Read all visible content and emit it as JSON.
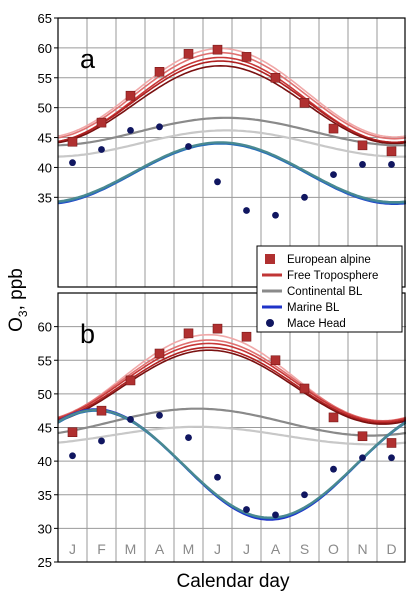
{
  "figure": {
    "ylabel_main": "O",
    "ylabel_sub": "3",
    "ylabel_rest": ", ppb",
    "xlabel": "Calendar day"
  },
  "legend": [
    {
      "label": "European alpine",
      "marker": "square",
      "color": "#b03030"
    },
    {
      "label": "Free Troposphere",
      "marker": "line",
      "color": "#c03535"
    },
    {
      "label": "Continental BL",
      "marker": "line",
      "color": "#8a8a8a"
    },
    {
      "label": "Marine BL",
      "marker": "line",
      "color": "#1f33c8"
    },
    {
      "label": "Mace Head",
      "marker": "circle",
      "color": "#101660"
    }
  ],
  "colors": {
    "alpine": "#b03030",
    "free_trop": [
      "#f0a8a8",
      "#e07070",
      "#c83838",
      "#b02020",
      "#7a1010"
    ],
    "continental": [
      "#c8c8c8",
      "#8a8a8a"
    ],
    "marine": [
      "#1f33c8",
      "#2a70b8",
      "#4a8a90"
    ],
    "mace": "#101660"
  },
  "chart_data": [
    {
      "panel_label": "a",
      "type": "line",
      "x_ticks": [
        "J",
        "F",
        "M",
        "A",
        "M",
        "J",
        "J",
        "A",
        "S",
        "O",
        "N",
        "D"
      ],
      "yticks": [
        35,
        40,
        45,
        50,
        55,
        60,
        65
      ],
      "ylim": [
        20,
        65
      ],
      "xlim": [
        0,
        12
      ],
      "grid": true,
      "series": [
        {
          "name": "European alpine",
          "kind": "points",
          "x": [
            0.5,
            1.5,
            2.5,
            3.5,
            4.5,
            5.5,
            6.5,
            7.5,
            8.5,
            9.5,
            10.5,
            11.5
          ],
          "values": [
            44.3,
            47.5,
            52,
            56,
            59,
            59.7,
            58.5,
            55,
            50.8,
            46.5,
            43.7,
            42.7
          ]
        },
        {
          "name": "Mace Head",
          "kind": "points",
          "x": [
            0.5,
            1.5,
            2.5,
            3.5,
            4.5,
            5.5,
            6.5,
            7.5,
            8.5,
            9.5,
            10.5,
            11.5
          ],
          "values": [
            40.8,
            43,
            46.2,
            46.8,
            43.5,
            37.6,
            32.8,
            32,
            35,
            38.8,
            40.5,
            40.5
          ]
        },
        {
          "name": "Free Troposphere",
          "kind": "curves",
          "mean": [
            52.5,
            52.0,
            51.3,
            51.0,
            50.5
          ],
          "amp": [
            7.4,
            7.2,
            7.1,
            6.8,
            6.5
          ],
          "phase": 5.6,
          "base_curve": true
        },
        {
          "name": "Continental BL",
          "kind": "curves",
          "mean": [
            44.0,
            46.0
          ],
          "amp": [
            2.2,
            2.3
          ],
          "phase": 5.8
        },
        {
          "name": "Marine BL",
          "kind": "curves",
          "mean": [
            39.0,
            39.0,
            39.2
          ],
          "amp": [
            5.1,
            5.0,
            5.0
          ],
          "phase": 5.6
        }
      ]
    },
    {
      "panel_label": "b",
      "type": "line",
      "x_ticks": [
        "J",
        "F",
        "M",
        "A",
        "M",
        "J",
        "J",
        "A",
        "S",
        "O",
        "N",
        "D"
      ],
      "yticks": [
        25,
        30,
        35,
        40,
        45,
        50,
        55,
        60
      ],
      "ylim": [
        25,
        65
      ],
      "xlim": [
        0,
        12
      ],
      "grid": true,
      "series": [
        {
          "name": "European alpine",
          "kind": "points",
          "x": [
            0.5,
            1.5,
            2.5,
            3.5,
            4.5,
            5.5,
            6.5,
            7.5,
            8.5,
            9.5,
            10.5,
            11.5
          ],
          "values": [
            44.3,
            47.5,
            52,
            56,
            59,
            59.7,
            58.5,
            55,
            50.8,
            46.5,
            43.7,
            42.7
          ]
        },
        {
          "name": "Mace Head",
          "kind": "points",
          "x": [
            0.5,
            1.5,
            2.5,
            3.5,
            4.5,
            5.5,
            6.5,
            7.5,
            8.5,
            9.5,
            10.5,
            11.5
          ],
          "values": [
            40.8,
            43,
            46.2,
            46.8,
            43.5,
            37.6,
            32.8,
            32,
            35,
            38.8,
            40.5,
            40.5
          ]
        },
        {
          "name": "Free Troposphere",
          "kind": "curves",
          "mean": [
            52.3,
            52.0,
            51.7,
            51.3,
            51.0
          ],
          "amp": [
            6.5,
            6.0,
            5.8,
            5.6,
            5.5
          ],
          "phase": 5.2
        },
        {
          "name": "Continental BL",
          "kind": "curves",
          "mean": [
            43.8,
            45.8
          ],
          "amp": [
            1.3,
            2.0
          ],
          "phase": 4.8
        },
        {
          "name": "Marine BL",
          "kind": "curves",
          "mean": [
            39.5,
            39.5,
            39.6
          ],
          "amp": [
            8.2,
            8.0,
            8.0
          ],
          "phase": 1.3
        }
      ]
    }
  ]
}
